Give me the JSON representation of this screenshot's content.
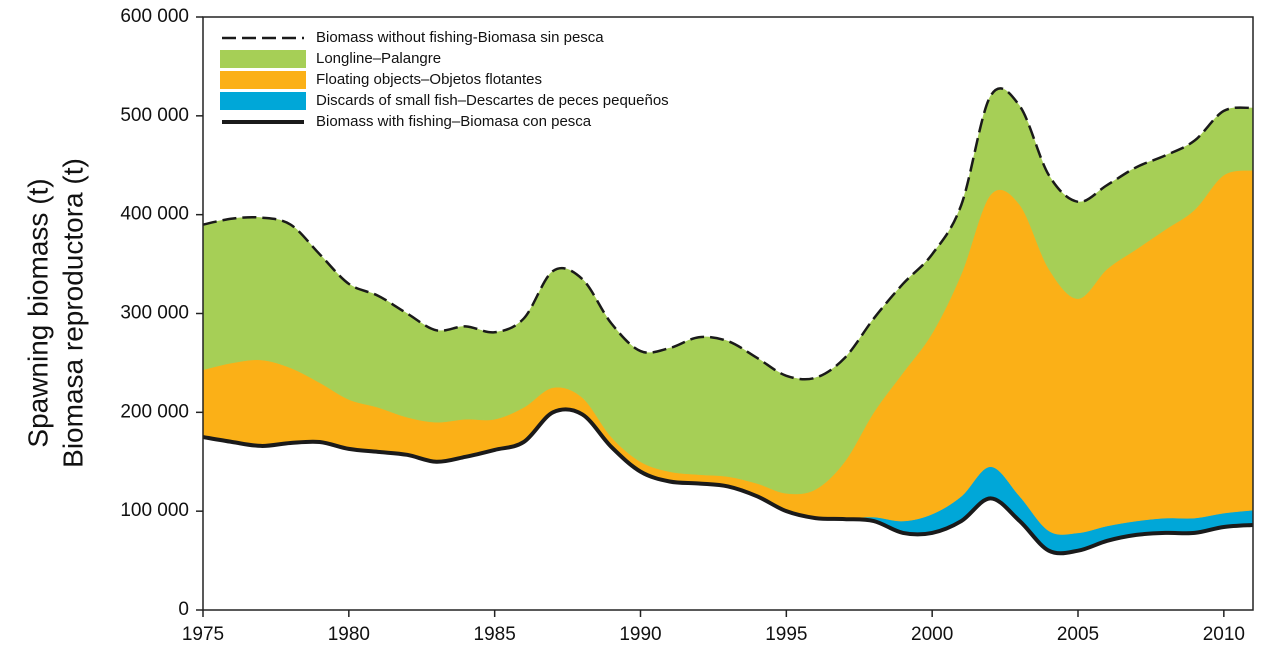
{
  "chart_data": {
    "type": "area",
    "stacked": true,
    "y_label": [
      "Spawning biomass (t)",
      "Biomasa reproductora (t)"
    ],
    "x": [
      1975,
      1976,
      1977,
      1978,
      1979,
      1980,
      1981,
      1982,
      1983,
      1984,
      1985,
      1986,
      1987,
      1988,
      1989,
      1990,
      1991,
      1992,
      1993,
      1994,
      1995,
      1996,
      1997,
      1998,
      1999,
      2000,
      2001,
      2002,
      2003,
      2004,
      2005,
      2006,
      2007,
      2008,
      2009,
      2010,
      2011
    ],
    "xlim": [
      1975,
      2011
    ],
    "xticks": [
      1975,
      1980,
      1985,
      1990,
      1995,
      2000,
      2005,
      2010
    ],
    "ylim": [
      0,
      600000
    ],
    "yticks": [
      0,
      {
        "value": 100000,
        "label": "100 000"
      },
      {
        "value": 200000,
        "label": "200 000"
      },
      {
        "value": 300000,
        "label": "300 000"
      },
      {
        "value": 400000,
        "label": "400 000"
      },
      {
        "value": 500000,
        "label": "500 000"
      },
      {
        "value": 600000,
        "label": "600 000"
      }
    ],
    "series": [
      {
        "name": "Biomass with fishing–Biomasa con pesca",
        "type": "line",
        "dashed": false,
        "color": "#1a1a1a",
        "values": [
          175000,
          170000,
          166000,
          169000,
          170000,
          163000,
          160000,
          157000,
          150000,
          155000,
          162000,
          170000,
          200000,
          198000,
          165000,
          140000,
          130000,
          128000,
          125000,
          115000,
          100000,
          93000,
          92000,
          90000,
          78000,
          78000,
          90000,
          113000,
          90000,
          60000,
          60000,
          70000,
          76000,
          78000,
          78000,
          84000,
          86000
        ]
      },
      {
        "name": "Discards of small fish–Descartes de peces pequeños",
        "type": "area",
        "color": "#00a7d8",
        "values": [
          0,
          0,
          0,
          0,
          0,
          0,
          0,
          0,
          0,
          0,
          0,
          0,
          0,
          0,
          0,
          0,
          0,
          0,
          0,
          0,
          0,
          0,
          1000,
          4000,
          12000,
          19000,
          25000,
          32000,
          25000,
          20000,
          18000,
          15000,
          14000,
          15000,
          15000,
          14000,
          15000
        ]
      },
      {
        "name": "Floating objects–Objetos flotantes",
        "type": "area",
        "color": "#fbb017",
        "values": [
          68000,
          80000,
          87000,
          76000,
          60000,
          50000,
          45000,
          38000,
          40000,
          38000,
          31000,
          35000,
          25000,
          17000,
          10000,
          10000,
          10000,
          9000,
          10000,
          13000,
          18000,
          29000,
          57000,
          106000,
          150000,
          183000,
          225000,
          275000,
          295000,
          265000,
          237000,
          260000,
          275000,
          292000,
          312000,
          342000,
          344000
        ]
      },
      {
        "name": "Longline–Palangre",
        "type": "area",
        "color": "#a6cf56",
        "values": [
          147000,
          146000,
          144000,
          145000,
          130000,
          117000,
          113000,
          105000,
          93000,
          94000,
          88000,
          90000,
          118000,
          120000,
          115000,
          112000,
          125000,
          139000,
          137000,
          127000,
          119000,
          113000,
          105000,
          95000,
          90000,
          80000,
          70000,
          100000,
          100000,
          95000,
          98000,
          85000,
          83000,
          75000,
          70000,
          65000,
          63000
        ]
      },
      {
        "name": "Biomass without fishing-Biomasa sin pesca",
        "type": "line",
        "dashed": true,
        "color": "#1a1a1a",
        "values": [
          390000,
          396000,
          397000,
          390000,
          360000,
          330000,
          318000,
          300000,
          283000,
          287000,
          281000,
          295000,
          343000,
          335000,
          290000,
          262000,
          265000,
          276000,
          272000,
          255000,
          237000,
          235000,
          255000,
          295000,
          330000,
          360000,
          410000,
          520000,
          510000,
          440000,
          413000,
          430000,
          448000,
          460000,
          475000,
          505000,
          508000
        ]
      }
    ]
  }
}
